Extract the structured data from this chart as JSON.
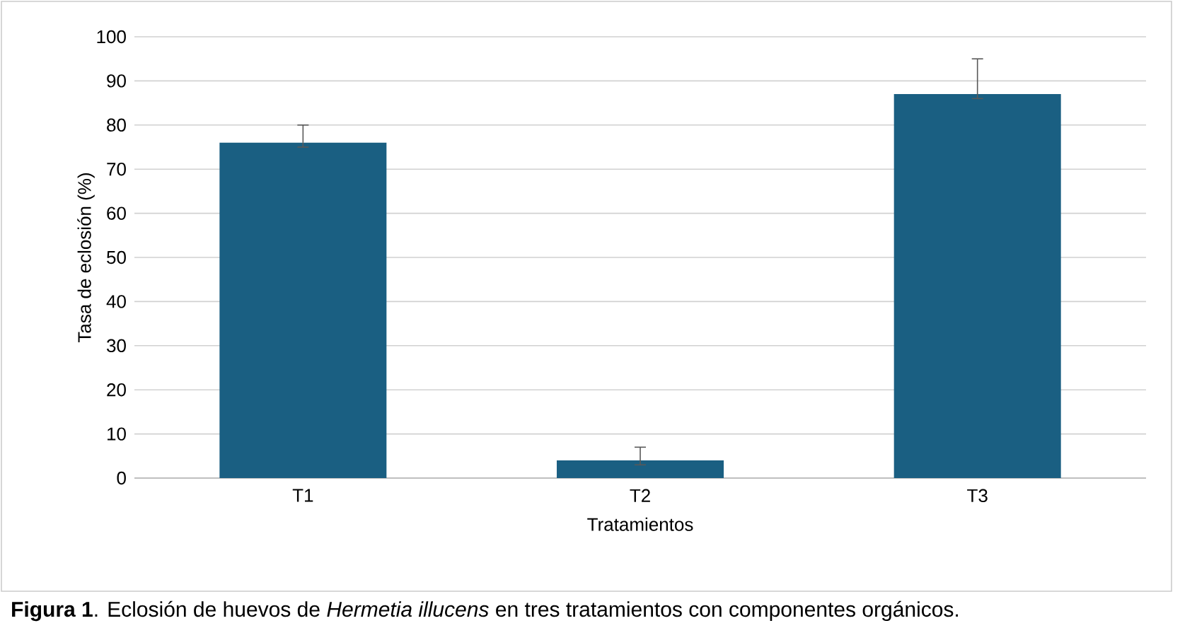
{
  "chart_data": {
    "type": "bar",
    "categories": [
      "T1",
      "T2",
      "T3"
    ],
    "values": [
      76,
      4,
      87
    ],
    "errors": [
      [
        75,
        80
      ],
      [
        3,
        7
      ],
      [
        86,
        95
      ]
    ],
    "color": "#1a5f82",
    "xlabel": "Tratamientos",
    "ylabel": "Tasa de eclosión (%)",
    "ylim": [
      0,
      100
    ],
    "yticks": [
      0,
      10,
      20,
      30,
      40,
      50,
      60,
      70,
      80,
      90,
      100
    ],
    "grid": "y",
    "annotations": [
      "**Figura 1**. Eclosión de huevos de *Hermetia illucens* en tres tratamientos con componentes orgánicos."
    ]
  }
}
